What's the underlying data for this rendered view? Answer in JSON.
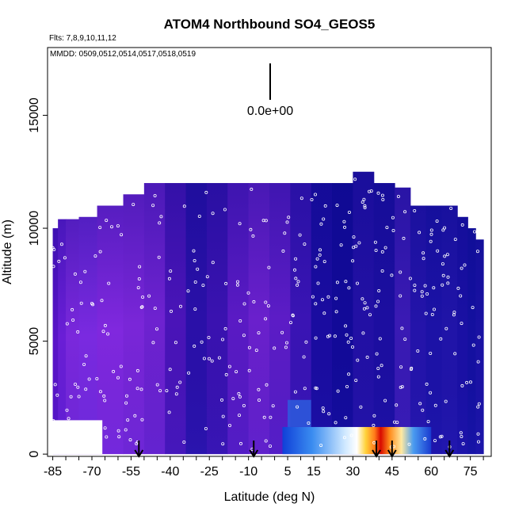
{
  "chart_data": {
    "type": "heatmap",
    "title": "ATOM4 Northbound SO4_GEOS5",
    "flights_label": "Flts: 7,8,9,10,11,12",
    "dates_label": "MMDD: 0509,0512,0514,0517,0518,0519",
    "xlabel": "Latitude (deg N)",
    "ylabel": "Altitude (m)",
    "xlim": [
      -87,
      83
    ],
    "ylim": [
      -100,
      18000
    ],
    "x_ticks": [
      -85,
      -70,
      -55,
      -40,
      -25,
      -10,
      5,
      15,
      30,
      45,
      60,
      75
    ],
    "y_ticks": [
      0,
      5000,
      10000,
      15000
    ],
    "scale_label": "0.0e+00",
    "arrow_latitudes": [
      -52,
      -8,
      39,
      45,
      67
    ],
    "columns": [
      {
        "lat0": -85,
        "lat1": -83,
        "top": 10000,
        "color": "#5a14c8"
      },
      {
        "lat0": -83,
        "lat1": -80,
        "top": 10400,
        "color": "#6a1ed6"
      },
      {
        "lat0": -80,
        "lat1": -75,
        "top": 10400,
        "color": "#7a28dc"
      },
      {
        "lat0": -75,
        "lat1": -68,
        "top": 10500,
        "color": "#7a2ae0"
      },
      {
        "lat0": -68,
        "lat1": -58,
        "top": 11000,
        "color": "#8028de"
      },
      {
        "lat0": -58,
        "lat1": -50,
        "top": 11500,
        "color": "#7a26d8"
      },
      {
        "lat0": -50,
        "lat1": -42,
        "top": 12000,
        "color": "#6e22d0"
      },
      {
        "lat0": -42,
        "lat1": -34,
        "top": 12000,
        "color": "#4a14b8"
      },
      {
        "lat0": -34,
        "lat1": -26,
        "top": 12000,
        "color": "#2a10a8"
      },
      {
        "lat0": -26,
        "lat1": -18,
        "top": 12000,
        "color": "#3a12b0"
      },
      {
        "lat0": -18,
        "lat1": -10,
        "top": 12000,
        "color": "#5a1ac4"
      },
      {
        "lat0": -10,
        "lat1": -2,
        "top": 12000,
        "color": "#6a20cc"
      },
      {
        "lat0": -2,
        "lat1": 6,
        "top": 12000,
        "color": "#5c1cc6"
      },
      {
        "lat0": 6,
        "lat1": 14,
        "top": 12000,
        "color": "#3a14b4"
      },
      {
        "lat0": 14,
        "lat1": 22,
        "top": 12000,
        "color": "#1a0ca0"
      },
      {
        "lat0": 22,
        "lat1": 30,
        "top": 12000,
        "color": "#120a98"
      },
      {
        "lat0": 30,
        "lat1": 38,
        "top": 12500,
        "color": "#2210a4"
      },
      {
        "lat0": 38,
        "lat1": 46,
        "top": 12000,
        "color": "#1c0ea0"
      },
      {
        "lat0": 46,
        "lat1": 52,
        "top": 11800,
        "color": "#3a1ab4"
      },
      {
        "lat0": 52,
        "lat1": 58,
        "top": 11000,
        "color": "#2414aa"
      },
      {
        "lat0": 58,
        "lat1": 64,
        "top": 11000,
        "color": "#1c12a6"
      },
      {
        "lat0": 64,
        "lat1": 70,
        "top": 11000,
        "color": "#2014a8"
      },
      {
        "lat0": 70,
        "lat1": 74,
        "top": 10500,
        "color": "#1a10a4"
      },
      {
        "lat0": 74,
        "lat1": 77,
        "top": 10000,
        "color": "#1410a0"
      },
      {
        "lat0": 77,
        "lat1": 80,
        "top": 9500,
        "color": "#1a12a4"
      }
    ],
    "hotspot": {
      "lat0": 3,
      "lat1": 60,
      "alt0": 0,
      "alt1": 1200
    }
  }
}
